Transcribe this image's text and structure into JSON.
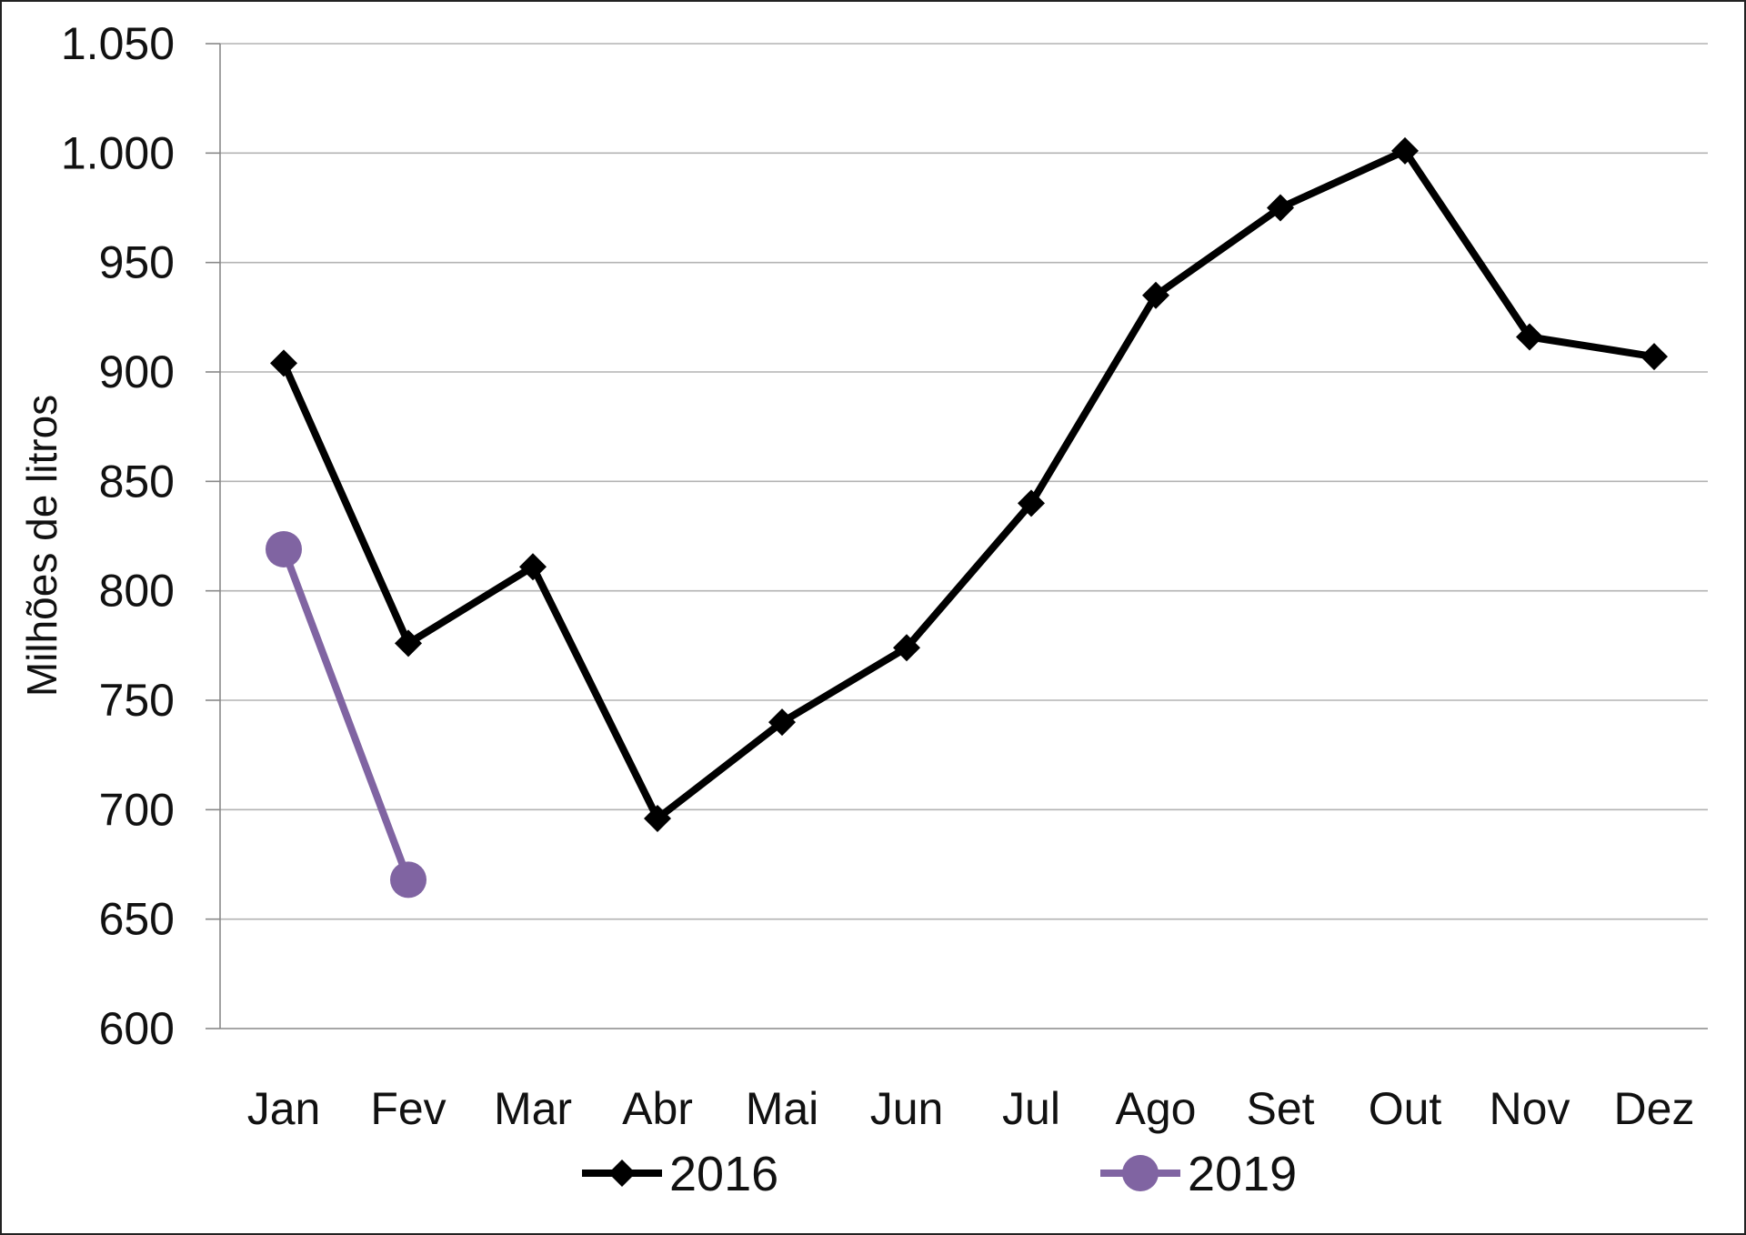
{
  "chart_data": {
    "type": "line",
    "title": "",
    "xlabel": "",
    "ylabel": "Milhões de litros",
    "categories": [
      "Jan",
      "Fev",
      "Mar",
      "Abr",
      "Mai",
      "Jun",
      "Jul",
      "Ago",
      "Set",
      "Out",
      "Nov",
      "Dez"
    ],
    "ylim": [
      600,
      1050
    ],
    "yticks": [
      600,
      650,
      700,
      750,
      800,
      850,
      900,
      950,
      1000,
      1050
    ],
    "ytick_labels": [
      "600",
      "650",
      "700",
      "750",
      "800",
      "850",
      "900",
      "950",
      "1.000",
      "1.050"
    ],
    "grid": true,
    "legend_position": "bottom",
    "series": [
      {
        "name": "2016",
        "color": "#000000",
        "marker": "diamond",
        "values": [
          904,
          776,
          811,
          696,
          740,
          774,
          840,
          935,
          975,
          1001,
          916,
          907
        ]
      },
      {
        "name": "2019",
        "color": "#8064a2",
        "marker": "circle",
        "values": [
          819,
          668,
          null,
          null,
          null,
          null,
          null,
          null,
          null,
          null,
          null,
          null
        ]
      }
    ]
  }
}
